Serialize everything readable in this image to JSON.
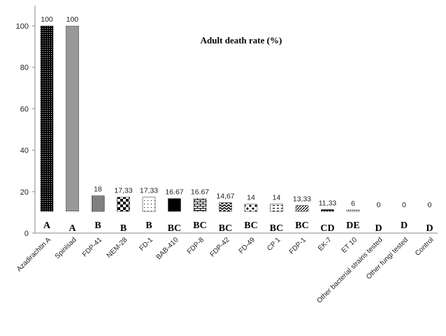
{
  "chart_data": {
    "type": "bar",
    "title": "Adult death rate (%)",
    "xlabel": "",
    "ylabel": "",
    "ylim": [
      0,
      100
    ],
    "yticks": [
      "0",
      "20",
      "40",
      "60",
      "80",
      "100"
    ],
    "grid": false,
    "categories": [
      "Azadirachtin A",
      "Spinisad",
      "FDP-41",
      "NEM-28",
      "FD-1",
      "BAB-410",
      "FDP-8",
      "FDP-42",
      "FD-49",
      "CP 1",
      "FDP-1",
      "EK-7",
      "ET 10",
      "Other bacterial strains tested",
      "Other fungi tested",
      "Control"
    ],
    "values": [
      100,
      100,
      18,
      17.33,
      17.33,
      16.67,
      16.67,
      14.67,
      14,
      14,
      13.33,
      11.33,
      6,
      0,
      0,
      0
    ],
    "value_labels": [
      "100",
      "100",
      "18",
      "17,33",
      "17,33",
      "16.67",
      "16.67",
      "14,67",
      "14",
      "14",
      "13,33",
      "11,33",
      "6",
      "0",
      "0",
      "0"
    ],
    "groups": [
      "A",
      "A",
      "B",
      "B",
      "B",
      "BC",
      "BC",
      "BC",
      "BC",
      "BC",
      "BC",
      "CD",
      "DE",
      "D",
      "D",
      "D"
    ]
  }
}
